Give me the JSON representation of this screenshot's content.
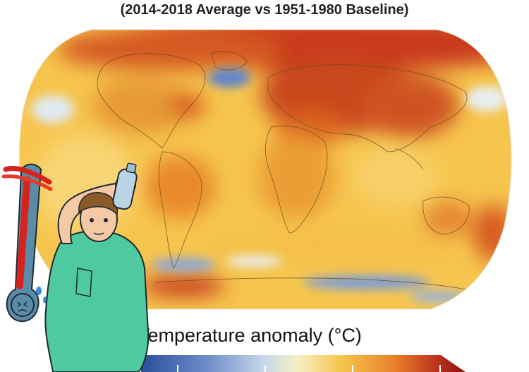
{
  "subtitle": "(2014-2018 Average vs 1951-1980 Baseline)",
  "legend": {
    "title": "Temperature anomaly (°C)",
    "gradient_colors": [
      "#2c4e9c",
      "#6b8cc8",
      "#c7d8e8",
      "#f4f0c8",
      "#f6c44a",
      "#e8822a",
      "#c0391f",
      "#8f1010"
    ]
  },
  "map_colors": {
    "base_warm": "#f6c44a",
    "hot": "#d9531e",
    "very_hot": "#b8220f",
    "cool": "#6f93d2",
    "neutral": "#eef3f6"
  },
  "illustration": {
    "shirt_color": "#4fc9a0",
    "thermometer_color": "#5a8ca8",
    "mercury_color": "#d8231d"
  }
}
